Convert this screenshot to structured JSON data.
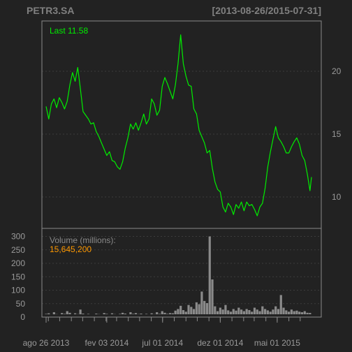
{
  "header": {
    "symbol": "PETR3.SA",
    "date_range": "[2013-08-26/2015-07-31]"
  },
  "colors": {
    "background": "#222222",
    "panel_border": "#8a8a8a",
    "price_line": "#00ee00",
    "volume_bar": "#8a8a8a",
    "volume_value": "#ff9900",
    "text": "#9a9a9a"
  },
  "chart_data": [
    {
      "type": "line",
      "series": [
        {
          "label": "Last 11.58",
          "x": [
            "2013-08-26",
            "2013-09-02",
            "2013-09-09",
            "2013-09-16",
            "2013-09-23",
            "2013-09-30",
            "2013-10-07",
            "2013-10-14",
            "2013-10-21",
            "2013-10-28",
            "2013-11-04",
            "2013-11-11",
            "2013-11-18",
            "2013-11-25",
            "2013-12-02",
            "2013-12-09",
            "2013-12-16",
            "2013-12-23",
            "2013-12-30",
            "2014-01-06",
            "2014-01-13",
            "2014-01-20",
            "2014-01-27",
            "2014-02-03",
            "2014-02-10",
            "2014-02-17",
            "2014-02-24",
            "2014-03-03",
            "2014-03-10",
            "2014-03-17",
            "2014-03-24",
            "2014-03-31",
            "2014-04-07",
            "2014-04-14",
            "2014-04-21",
            "2014-04-28",
            "2014-05-05",
            "2014-05-12",
            "2014-05-19",
            "2014-05-26",
            "2014-06-02",
            "2014-06-09",
            "2014-06-16",
            "2014-06-23",
            "2014-06-30",
            "2014-07-07",
            "2014-07-14",
            "2014-07-21",
            "2014-07-28",
            "2014-08-04",
            "2014-08-11",
            "2014-08-18",
            "2014-08-25",
            "2014-09-01",
            "2014-09-08",
            "2014-09-15",
            "2014-09-22",
            "2014-09-29",
            "2014-10-06",
            "2014-10-13",
            "2014-10-20",
            "2014-10-27",
            "2014-11-03",
            "2014-11-10",
            "2014-11-17",
            "2014-11-24",
            "2014-12-01",
            "2014-12-08",
            "2014-12-15",
            "2014-12-22",
            "2014-12-29",
            "2015-01-05",
            "2015-01-12",
            "2015-01-19",
            "2015-01-26",
            "2015-02-02",
            "2015-02-09",
            "2015-02-16",
            "2015-02-23",
            "2015-03-02",
            "2015-03-09",
            "2015-03-16",
            "2015-03-23",
            "2015-03-30",
            "2015-04-06",
            "2015-04-13",
            "2015-04-20",
            "2015-04-27",
            "2015-05-04",
            "2015-05-11",
            "2015-05-18",
            "2015-05-25",
            "2015-06-01",
            "2015-06-08",
            "2015-06-15",
            "2015-06-22",
            "2015-06-29",
            "2015-07-06",
            "2015-07-13",
            "2015-07-20",
            "2015-07-27",
            "2015-07-31"
          ],
          "values": [
            17.2,
            16.2,
            17.4,
            17.8,
            17.1,
            17.9,
            17.5,
            17.0,
            17.6,
            18.9,
            19.9,
            19.2,
            20.3,
            18.6,
            16.8,
            16.5,
            16.2,
            15.8,
            15.9,
            15.2,
            14.8,
            14.3,
            13.8,
            13.3,
            13.6,
            12.9,
            12.8,
            12.4,
            12.2,
            12.8,
            13.9,
            14.7,
            15.8,
            15.4,
            15.9,
            15.3,
            15.9,
            16.6,
            15.8,
            16.2,
            17.8,
            17.4,
            16.5,
            16.9,
            18.8,
            19.5,
            19.0,
            18.4,
            17.8,
            18.9,
            20.6,
            22.9,
            20.6,
            19.6,
            18.9,
            18.8,
            17.0,
            16.6,
            15.3,
            14.8,
            14.3,
            13.5,
            13.7,
            12.3,
            11.2,
            10.6,
            10.4,
            9.2,
            8.8,
            9.5,
            9.2,
            8.6,
            9.4,
            9.1,
            9.6,
            8.9,
            9.6,
            9.3,
            9.4,
            9.0,
            8.5,
            9.2,
            9.5,
            10.7,
            12.4,
            13.6,
            14.6,
            15.6,
            14.7,
            14.4,
            14.0,
            13.5,
            13.5,
            14.0,
            14.4,
            14.7,
            14.2,
            13.3,
            12.9,
            11.8,
            10.5,
            11.58
          ]
        }
      ],
      "yticks": [
        10,
        15,
        20
      ],
      "ylim": [
        7.5,
        24.0
      ],
      "grid": true
    },
    {
      "type": "bar",
      "title": "Volume (millions):",
      "last_value_label": "15,645,200",
      "x": [
        "2013-08-26",
        "2013-09-02",
        "2013-09-09",
        "2013-09-16",
        "2013-09-23",
        "2013-09-30",
        "2013-10-07",
        "2013-10-14",
        "2013-10-21",
        "2013-10-28",
        "2013-11-04",
        "2013-11-11",
        "2013-11-18",
        "2013-11-25",
        "2013-12-02",
        "2013-12-09",
        "2013-12-16",
        "2013-12-23",
        "2013-12-30",
        "2014-01-06",
        "2014-01-13",
        "2014-01-20",
        "2014-01-27",
        "2014-02-03",
        "2014-02-10",
        "2014-02-17",
        "2014-02-24",
        "2014-03-03",
        "2014-03-10",
        "2014-03-17",
        "2014-03-24",
        "2014-03-31",
        "2014-04-07",
        "2014-04-14",
        "2014-04-21",
        "2014-04-28",
        "2014-05-05",
        "2014-05-12",
        "2014-05-19",
        "2014-05-26",
        "2014-06-02",
        "2014-06-09",
        "2014-06-16",
        "2014-06-23",
        "2014-06-30",
        "2014-07-07",
        "2014-07-14",
        "2014-07-21",
        "2014-07-28",
        "2014-08-04",
        "2014-08-11",
        "2014-08-18",
        "2014-08-25",
        "2014-09-01",
        "2014-09-08",
        "2014-09-15",
        "2014-09-22",
        "2014-09-29",
        "2014-10-06",
        "2014-10-13",
        "2014-10-20",
        "2014-10-27",
        "2014-11-03",
        "2014-11-10",
        "2014-11-17",
        "2014-11-24",
        "2014-12-01",
        "2014-12-08",
        "2014-12-15",
        "2014-12-22",
        "2014-12-29",
        "2015-01-05",
        "2015-01-12",
        "2015-01-19",
        "2015-01-26",
        "2015-02-02",
        "2015-02-09",
        "2015-02-16",
        "2015-02-23",
        "2015-03-02",
        "2015-03-09",
        "2015-03-16",
        "2015-03-23",
        "2015-03-30",
        "2015-04-06",
        "2015-04-13",
        "2015-04-20",
        "2015-04-27",
        "2015-05-04",
        "2015-05-11",
        "2015-05-18",
        "2015-05-25",
        "2015-06-01",
        "2015-06-08",
        "2015-06-15",
        "2015-06-22",
        "2015-06-29",
        "2015-07-06",
        "2015-07-13",
        "2015-07-20",
        "2015-07-27"
      ],
      "values": [
        12,
        14,
        10,
        18,
        11,
        9,
        15,
        12,
        22,
        16,
        10,
        14,
        11,
        28,
        13,
        10,
        12,
        8,
        9,
        13,
        11,
        10,
        15,
        12,
        10,
        14,
        11,
        9,
        12,
        16,
        13,
        10,
        18,
        12,
        15,
        11,
        13,
        9,
        12,
        10,
        14,
        11,
        18,
        12,
        22,
        16,
        12,
        15,
        14,
        24,
        30,
        42,
        26,
        20,
        45,
        38,
        30,
        55,
        48,
        95,
        60,
        52,
        300,
        140,
        40,
        22,
        35,
        28,
        45,
        25,
        20,
        30,
        24,
        35,
        28,
        22,
        30,
        26,
        20,
        35,
        28,
        22,
        40,
        30,
        25,
        20,
        28,
        40,
        30,
        82,
        35,
        25,
        20,
        28,
        22,
        24,
        20,
        18,
        22,
        16,
        15.6
      ],
      "yticks": [
        0,
        50,
        100,
        150,
        200,
        250,
        300
      ],
      "ylim": [
        0,
        330
      ],
      "grid": true
    }
  ],
  "x_axis": {
    "tick_labels": [
      "ago 26 2013",
      "fev 03 2014",
      "jul 01 2014",
      "dez 01 2014",
      "mai 01 2015"
    ],
    "tick_dates": [
      "2013-08-26",
      "2014-02-03",
      "2014-07-01",
      "2014-12-01",
      "2015-05-01"
    ],
    "range": [
      "2013-08-26",
      "2015-07-31"
    ]
  }
}
